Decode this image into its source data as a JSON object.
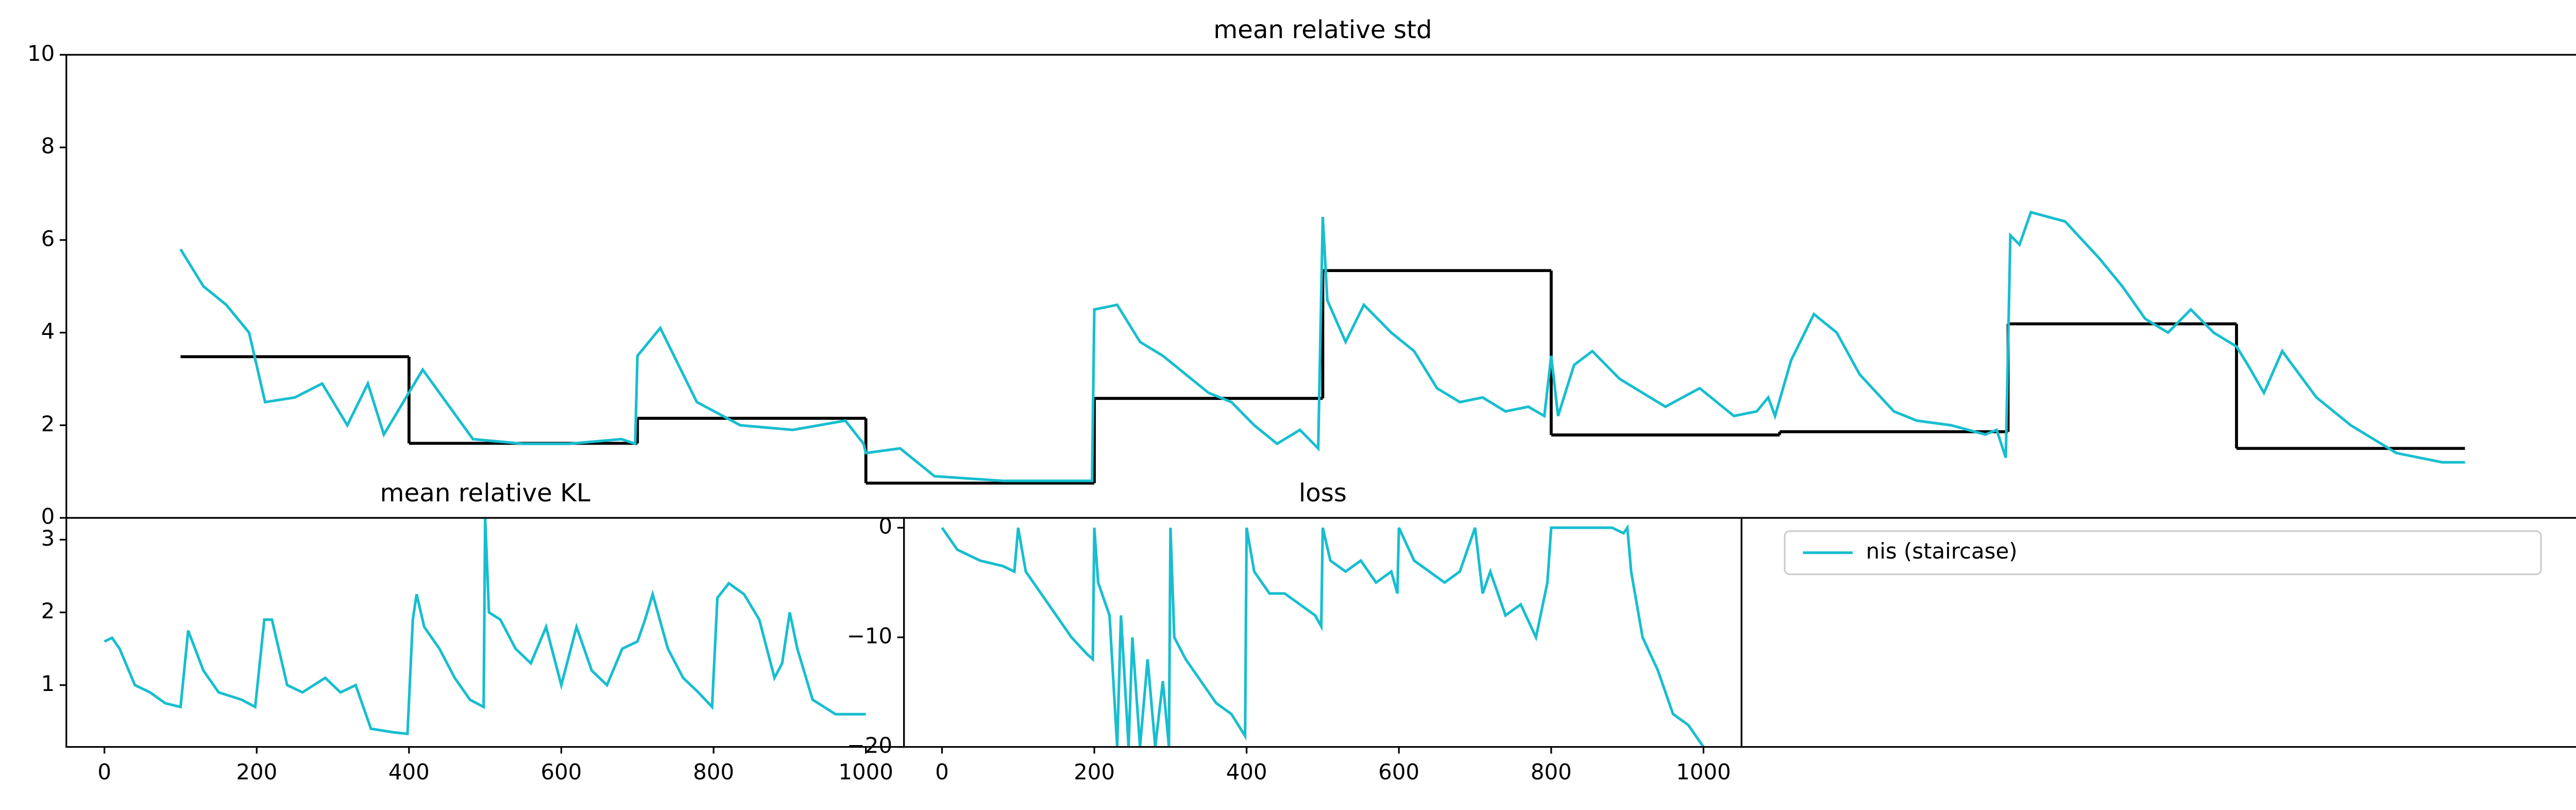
{
  "chart_data": [
    {
      "type": "line",
      "title": "mean relative std",
      "xlim": [
        -50,
        1050
      ],
      "ylim": [
        0,
        10
      ],
      "yticks": [
        0,
        2,
        4,
        6,
        8,
        10
      ],
      "legend": "upper left",
      "series": [
        {
          "color": "#000000",
          "step": true,
          "bins": [
            0,
            100,
            200,
            300,
            400,
            500,
            600,
            700,
            800,
            900,
            1000
          ],
          "values": [
            3.48,
            1.61,
            2.15,
            0.75,
            2.58,
            5.34,
            1.79,
            1.86,
            4.19,
            1.5
          ]
        },
        {
          "name": "nis (staircase)",
          "color": "#17becf",
          "x": [
            0,
            10,
            20,
            30,
            37,
            50,
            62,
            73,
            82,
            89,
            106,
            128,
            150,
            170,
            193,
            199,
            200,
            210,
            226,
            245,
            268,
            291,
            299,
            300,
            315,
            330,
            360,
            399,
            400,
            410,
            420,
            430,
            450,
            460,
            470,
            480,
            490,
            498,
            500,
            502,
            510,
            518,
            530,
            540,
            550,
            560,
            570,
            580,
            590,
            597,
            600,
            603,
            610,
            618,
            630,
            650,
            665,
            680,
            690,
            695,
            698,
            705,
            715,
            725,
            735,
            750,
            760,
            775,
            790,
            795,
            799,
            801,
            805,
            810,
            825,
            840,
            850,
            860,
            870,
            880,
            890,
            900,
            905,
            912,
            920,
            935,
            950,
            970,
            990,
            1000
          ],
          "values": [
            5.8,
            5.0,
            4.6,
            4.0,
            2.5,
            2.6,
            2.9,
            2.0,
            2.9,
            1.8,
            3.2,
            1.7,
            1.6,
            1.6,
            1.7,
            1.6,
            3.5,
            4.1,
            2.5,
            2.0,
            1.9,
            2.1,
            1.6,
            1.4,
            1.5,
            0.9,
            0.8,
            0.8,
            4.5,
            4.6,
            3.8,
            3.5,
            2.7,
            2.5,
            2.0,
            1.6,
            1.9,
            1.5,
            6.5,
            4.7,
            3.8,
            4.6,
            4.0,
            3.6,
            2.8,
            2.5,
            2.6,
            2.3,
            2.4,
            2.2,
            3.5,
            2.2,
            3.3,
            3.6,
            3.0,
            2.4,
            2.8,
            2.2,
            2.3,
            2.6,
            2.2,
            3.4,
            4.4,
            4.0,
            3.1,
            2.3,
            2.1,
            2.0,
            1.8,
            1.9,
            1.3,
            6.1,
            5.9,
            6.6,
            6.4,
            5.6,
            5.0,
            4.3,
            4.0,
            4.5,
            4.0,
            3.7,
            3.3,
            2.7,
            3.6,
            2.6,
            2.0,
            1.4,
            1.2,
            1.2
          ]
        }
      ]
    },
    {
      "type": "line",
      "title": "mean relative KL",
      "xlim": [
        -50,
        1050
      ],
      "xticks": [
        0,
        200,
        400,
        600,
        800,
        1000
      ],
      "ylim": [
        0.15,
        3.3
      ],
      "yticks": [
        1,
        2,
        3
      ],
      "series": [
        {
          "color": "#17becf",
          "x": [
            0,
            10,
            20,
            40,
            60,
            80,
            100,
            110,
            130,
            150,
            180,
            198,
            210,
            220,
            240,
            260,
            290,
            310,
            330,
            350,
            380,
            398,
            405,
            410,
            420,
            440,
            460,
            480,
            498,
            500,
            505,
            520,
            540,
            560,
            580,
            600,
            620,
            640,
            660,
            680,
            700,
            710,
            720,
            740,
            760,
            780,
            798,
            805,
            820,
            840,
            860,
            880,
            890,
            900,
            910,
            930,
            960,
            1000
          ],
          "values": [
            1.6,
            1.65,
            1.5,
            1.0,
            0.9,
            0.75,
            0.7,
            1.75,
            1.2,
            0.9,
            0.8,
            0.7,
            1.9,
            1.9,
            1.0,
            0.9,
            1.1,
            0.9,
            1.0,
            0.4,
            0.35,
            0.33,
            1.9,
            2.25,
            1.8,
            1.5,
            1.1,
            0.8,
            0.7,
            3.3,
            2.0,
            1.9,
            1.5,
            1.3,
            1.8,
            1.0,
            1.8,
            1.2,
            1.0,
            1.5,
            1.6,
            1.9,
            2.25,
            1.5,
            1.1,
            0.9,
            0.7,
            2.2,
            2.4,
            2.25,
            1.9,
            1.1,
            1.3,
            2.0,
            1.5,
            0.8,
            0.6,
            0.6
          ]
        }
      ]
    },
    {
      "type": "line",
      "title": "loss",
      "xlim": [
        -50,
        1050
      ],
      "xticks": [
        0,
        200,
        400,
        600,
        800,
        1000
      ],
      "ylim": [
        -20,
        0.9
      ],
      "yticks": [
        0,
        {
          "value": -10,
          "label": "−10"
        },
        {
          "value": -20,
          "label": "−20"
        }
      ],
      "series": [
        {
          "color": "#17becf",
          "x": [
            0,
            20,
            50,
            80,
            95,
            100,
            110,
            130,
            150,
            170,
            190,
            198,
            200,
            205,
            220,
            230,
            235,
            245,
            250,
            260,
            270,
            280,
            290,
            298,
            300,
            305,
            320,
            340,
            360,
            380,
            398,
            400,
            410,
            430,
            450,
            470,
            490,
            498,
            500,
            510,
            530,
            550,
            570,
            590,
            598,
            600,
            620,
            640,
            660,
            680,
            700,
            710,
            720,
            740,
            760,
            780,
            795,
            800,
            820,
            850,
            880,
            895,
            900,
            905,
            920,
            940,
            960,
            980,
            1000
          ],
          "values": [
            0,
            -2,
            -3,
            -3.5,
            -4,
            0,
            -4,
            -6,
            -8,
            -10,
            -11.5,
            -12,
            0,
            -5,
            -8,
            -20,
            -8,
            -20,
            -10,
            -20,
            -12,
            -20,
            -14,
            -20,
            0,
            -10,
            -12,
            -14,
            -16,
            -17,
            -19,
            0,
            -4,
            -6,
            -6,
            -7,
            -8,
            -9,
            0,
            -3,
            -4,
            -3,
            -5,
            -4,
            -6,
            0,
            -3,
            -4,
            -5,
            -4,
            0,
            -6,
            -4,
            -8,
            -7,
            -10,
            -5,
            0,
            0,
            0,
            0,
            -0.5,
            0,
            -4,
            -10,
            -13,
            -17,
            -18,
            -20
          ]
        }
      ]
    }
  ]
}
